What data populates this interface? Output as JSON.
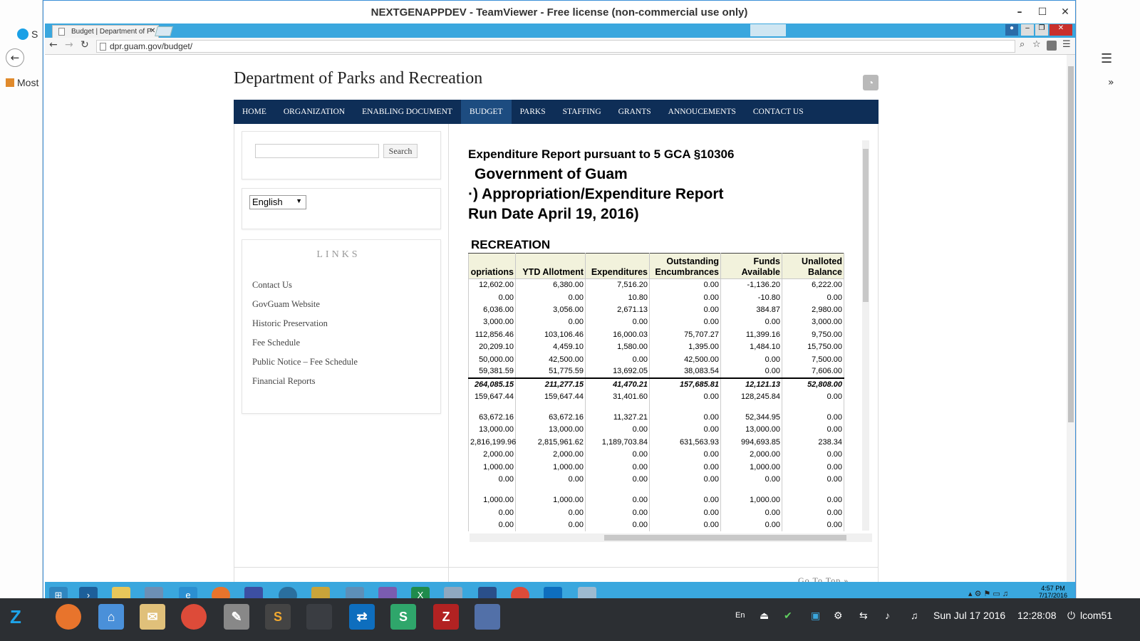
{
  "teamviewer": {
    "title": "NEXTGENAPPDEV - TeamViewer - Free license (non-commercial use only)"
  },
  "local": {
    "bookmark_label": "Most",
    "skype_label": "S"
  },
  "browser": {
    "tab_title": "Budget | Department of P",
    "url": "dpr.guam.gov/budget/"
  },
  "site": {
    "title": "Department of Parks and Recreation",
    "nav": [
      {
        "label": "HOME"
      },
      {
        "label": "ORGANIZATION"
      },
      {
        "label": "ENABLING DOCUMENT"
      },
      {
        "label": "BUDGET"
      },
      {
        "label": "PARKS"
      },
      {
        "label": "STAFFING"
      },
      {
        "label": "GRANTS"
      },
      {
        "label": "ANNOUCEMENTS"
      },
      {
        "label": "CONTACT US"
      }
    ],
    "search_button": "Search",
    "language": "English",
    "links_heading": "LINKS",
    "links": [
      "Contact Us",
      "GovGuam Website",
      "Historic Preservation",
      "Fee Schedule",
      "Public Notice – Fee Schedule",
      "Financial Reports"
    ],
    "goto_top": "Go To Top »"
  },
  "report": {
    "line1": "Expenditure Report pursuant to 5 GCA §10306",
    "line2": "Government of Guam",
    "line3": "·) Appropriation/Expenditure Report",
    "line4": "Run Date April 19, 2016)",
    "section": "RECREATION",
    "columns": [
      "opriations",
      "YTD Allotment",
      "Expenditures",
      "Outstanding Encumbrances",
      "Funds Available",
      "Unalloted Balance"
    ],
    "rows": [
      [
        "12,602.00",
        "6,380.00",
        "7,516.20",
        "0.00",
        "-1,136.20",
        "6,222.00"
      ],
      [
        "0.00",
        "0.00",
        "10.80",
        "0.00",
        "-10.80",
        "0.00"
      ],
      [
        "6,036.00",
        "3,056.00",
        "2,671.13",
        "0.00",
        "384.87",
        "2,980.00"
      ],
      [
        "3,000.00",
        "0.00",
        "0.00",
        "0.00",
        "0.00",
        "3,000.00"
      ],
      [
        "112,856.46",
        "103,106.46",
        "16,000.03",
        "75,707.27",
        "11,399.16",
        "9,750.00"
      ],
      [
        "20,209.10",
        "4,459.10",
        "1,580.00",
        "1,395.00",
        "1,484.10",
        "15,750.00"
      ],
      [
        "50,000.00",
        "42,500.00",
        "0.00",
        "42,500.00",
        "0.00",
        "7,500.00"
      ],
      [
        "59,381.59",
        "51,775.59",
        "13,692.05",
        "38,083.54",
        "0.00",
        "7,606.00"
      ]
    ],
    "total": [
      "264,085.15",
      "211,277.15",
      "41,470.21",
      "157,685.81",
      "12,121.13",
      "52,808.00"
    ],
    "row_after_total": [
      "159,647.44",
      "159,647.44",
      "31,401.60",
      "0.00",
      "128,245.84",
      "0.00"
    ],
    "rows2": [
      [
        "63,672.16",
        "63,672.16",
        "11,327.21",
        "0.00",
        "52,344.95",
        "0.00"
      ],
      [
        "13,000.00",
        "13,000.00",
        "0.00",
        "0.00",
        "13,000.00",
        "0.00"
      ],
      [
        "2,816,199.96",
        "2,815,961.62",
        "1,189,703.84",
        "631,563.93",
        "994,693.85",
        "238.34"
      ],
      [
        "2,000.00",
        "2,000.00",
        "0.00",
        "0.00",
        "2,000.00",
        "0.00"
      ],
      [
        "1,000.00",
        "1,000.00",
        "0.00",
        "0.00",
        "1,000.00",
        "0.00"
      ],
      [
        "0.00",
        "0.00",
        "0.00",
        "0.00",
        "0.00",
        "0.00"
      ]
    ],
    "rows3": [
      [
        "1,000.00",
        "1,000.00",
        "0.00",
        "0.00",
        "1,000.00",
        "0.00"
      ],
      [
        "0.00",
        "0.00",
        "0.00",
        "0.00",
        "0.00",
        "0.00"
      ],
      [
        "0.00",
        "0.00",
        "0.00",
        "0.00",
        "0.00",
        "0.00"
      ]
    ]
  },
  "remote_taskbar": {
    "time": "4:57 PM",
    "date": "7/17/2016"
  },
  "local_taskbar": {
    "lang": "En",
    "date": "Sun Jul 17 2016",
    "time": "12:28:08",
    "user": "lcom51"
  }
}
